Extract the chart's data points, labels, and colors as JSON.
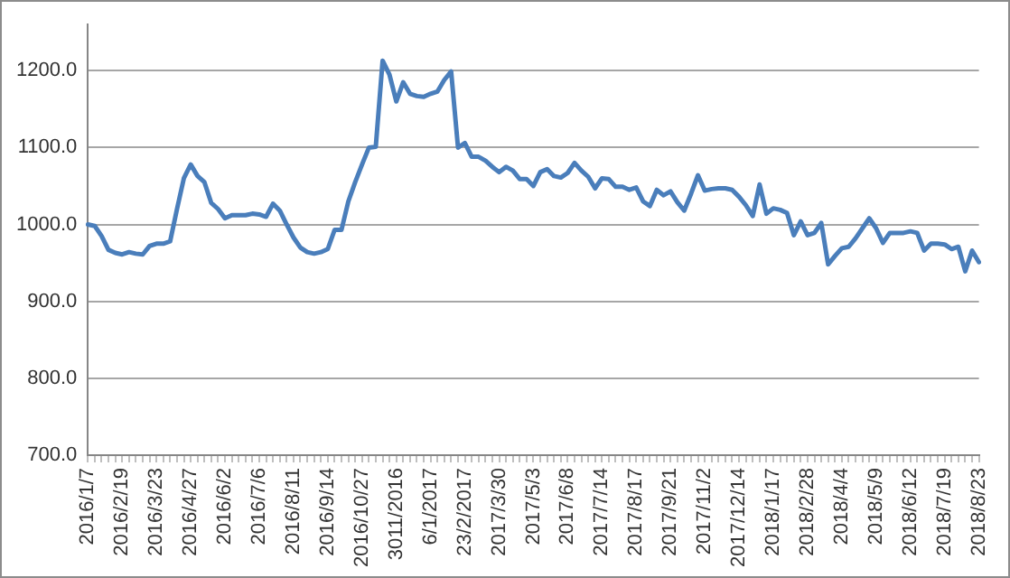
{
  "chart_data": {
    "type": "line",
    "color": "#4a7ebb",
    "marker": "none",
    "line_style": "solid",
    "grid": "y",
    "legend": false,
    "ylim": [
      700,
      1260
    ],
    "yticks": [
      {
        "value": 700,
        "label": "700.0"
      },
      {
        "value": 800,
        "label": "800.0"
      },
      {
        "value": 900,
        "label": "900.0"
      },
      {
        "value": 1000,
        "label": "1000.0"
      },
      {
        "value": 1100,
        "label": "1100.0"
      },
      {
        "value": 1200,
        "label": "1200.0"
      }
    ],
    "categories": [
      "2016/1/7",
      null,
      null,
      null,
      null,
      "2016/2/19",
      null,
      null,
      null,
      null,
      "2016/3/23",
      null,
      null,
      null,
      null,
      "2016/4/27",
      null,
      null,
      null,
      null,
      "2016/6/2",
      null,
      null,
      null,
      null,
      "2016/7/6",
      null,
      null,
      null,
      null,
      "2016/8/11",
      null,
      null,
      null,
      null,
      "2016/9/14",
      null,
      null,
      null,
      null,
      "2016/10/27",
      null,
      null,
      null,
      null,
      "3011/2016",
      null,
      null,
      null,
      null,
      "6/1/2017",
      null,
      null,
      null,
      null,
      "23/2/2017",
      null,
      null,
      null,
      null,
      "2017/3/30",
      null,
      null,
      null,
      null,
      "2017/5/3",
      null,
      null,
      null,
      null,
      "2017/6/8",
      null,
      null,
      null,
      null,
      "2017/7/14",
      null,
      null,
      null,
      null,
      "2017/8/17",
      null,
      null,
      null,
      null,
      "2017/9/21",
      null,
      null,
      null,
      null,
      "2017/11/2",
      null,
      null,
      null,
      null,
      "2017/12/14",
      null,
      null,
      null,
      null,
      "2018/1/17",
      null,
      null,
      null,
      null,
      "2018/2/28",
      null,
      null,
      null,
      null,
      "2018/4/4",
      null,
      null,
      null,
      null,
      "2018/5/9",
      null,
      null,
      null,
      null,
      "2018/6/12",
      null,
      null,
      null,
      null,
      "2018/7/19",
      null,
      null,
      null,
      null,
      "2018/8/23"
    ],
    "values": [
      1000,
      998,
      985,
      967,
      963,
      961,
      964,
      962,
      961,
      972,
      975,
      975,
      978,
      1020,
      1060,
      1078,
      1063,
      1055,
      1028,
      1020,
      1008,
      1012,
      1012,
      1012,
      1014,
      1013,
      1010,
      1027,
      1018,
      1000,
      983,
      970,
      964,
      962,
      964,
      968,
      993,
      993,
      1030,
      1055,
      1078,
      1100,
      1101,
      1213,
      1195,
      1160,
      1185,
      1170,
      1167,
      1166,
      1170,
      1173,
      1188,
      1199,
      1100,
      1106,
      1088,
      1088,
      1083,
      1075,
      1068,
      1075,
      1070,
      1059,
      1059,
      1050,
      1068,
      1072,
      1063,
      1061,
      1067,
      1080,
      1070,
      1062,
      1047,
      1060,
      1059,
      1049,
      1049,
      1045,
      1048,
      1030,
      1024,
      1045,
      1038,
      1043,
      1029,
      1018,
      1040,
      1064,
      1044,
      1046,
      1047,
      1047,
      1045,
      1036,
      1025,
      1011,
      1052,
      1014,
      1021,
      1019,
      1015,
      986,
      1004,
      986,
      989,
      1002,
      948,
      959,
      969,
      971,
      982,
      995,
      1008,
      995,
      976,
      989,
      989,
      989,
      991,
      989,
      966,
      975,
      975,
      974,
      968,
      971,
      939,
      966,
      951
    ]
  }
}
